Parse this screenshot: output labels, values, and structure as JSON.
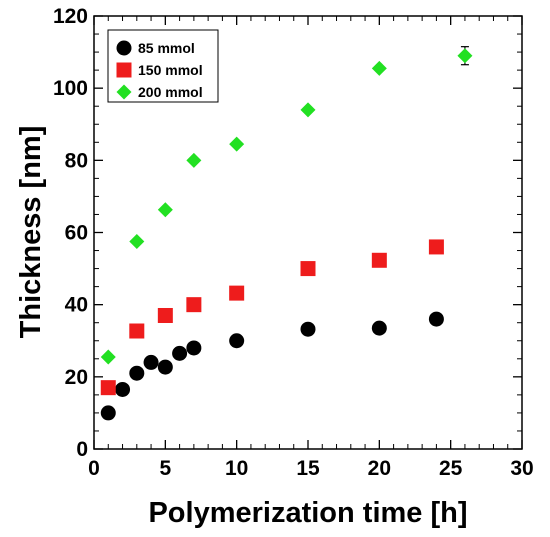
{
  "chart_data": {
    "type": "scatter",
    "title": "",
    "xlabel": "Polymerization time  [h]",
    "ylabel": "Thickness [nm]",
    "xlim": [
      0,
      30
    ],
    "ylim": [
      0,
      120
    ],
    "xticks": [
      0,
      5,
      10,
      15,
      20,
      25,
      30
    ],
    "yticks": [
      0,
      20,
      40,
      60,
      80,
      100,
      120
    ],
    "grid": false,
    "legend_position": "top-left",
    "series": [
      {
        "name": "85 mmol",
        "color": "#000000",
        "marker": "circle",
        "x": [
          1,
          2,
          3,
          4,
          5,
          6,
          7,
          10,
          15,
          20,
          24
        ],
        "y": [
          10,
          16.5,
          21,
          24,
          22.7,
          26.5,
          28,
          30,
          33.2,
          33.5,
          36
        ]
      },
      {
        "name": "150 mmol",
        "color": "#ee1c1c",
        "marker": "square",
        "x": [
          1,
          3,
          5,
          7,
          10,
          15,
          20,
          24
        ],
        "y": [
          17,
          32.7,
          37,
          40,
          43.2,
          50,
          52.3,
          56
        ]
      },
      {
        "name": "200 mmol",
        "color": "#22e022",
        "marker": "diamond",
        "x": [
          1,
          3,
          5,
          7,
          10,
          15,
          20,
          26
        ],
        "y": [
          25.5,
          57.5,
          66.3,
          80,
          84.5,
          94,
          105.5,
          109
        ],
        "error": [
          0,
          0,
          0,
          0,
          0,
          0,
          0,
          2.5
        ]
      }
    ]
  }
}
